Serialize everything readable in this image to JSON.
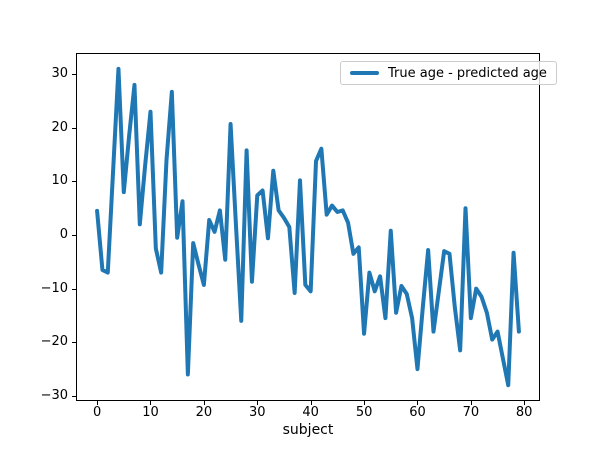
{
  "chart_data": {
    "type": "line",
    "title": "",
    "xlabel": "subject",
    "ylabel": "",
    "grid": false,
    "legend_position": "upper right",
    "line_color": "#1f77b4",
    "line_width": 4,
    "xlim": [
      -3.95,
      82.95
    ],
    "ylim": [
      -30.95,
      33.95
    ],
    "x_ticks": {
      "values": [
        0,
        10,
        20,
        30,
        40,
        50,
        60,
        70,
        80
      ],
      "labels": [
        "0",
        "10",
        "20",
        "30",
        "40",
        "50",
        "60",
        "70",
        "80"
      ]
    },
    "y_ticks": {
      "values": [
        30,
        20,
        10,
        0,
        -10,
        -20,
        -30
      ],
      "labels": [
        "30",
        "20",
        "10",
        "0",
        "−10",
        "−20",
        "−30"
      ]
    },
    "x": [
      0,
      1,
      2,
      3,
      4,
      5,
      6,
      7,
      8,
      9,
      10,
      11,
      12,
      13,
      14,
      15,
      16,
      17,
      18,
      19,
      20,
      21,
      22,
      23,
      24,
      25,
      26,
      27,
      28,
      29,
      30,
      31,
      32,
      33,
      34,
      35,
      36,
      37,
      38,
      39,
      40,
      41,
      42,
      43,
      44,
      45,
      46,
      47,
      48,
      49,
      50,
      51,
      52,
      53,
      54,
      55,
      56,
      57,
      58,
      59,
      60,
      61,
      62,
      63,
      64,
      65,
      66,
      67,
      68,
      69,
      70,
      71,
      72,
      73,
      74,
      75,
      76,
      77,
      78,
      79
    ],
    "series": [
      {
        "name": "True age - predicted age",
        "color": "#1f77b4",
        "values": [
          4.5,
          -6.5,
          -7.0,
          12.0,
          31.0,
          8.0,
          18.5,
          28.0,
          2.0,
          13.0,
          23.0,
          -2.5,
          -7.0,
          14.0,
          26.7,
          -0.5,
          6.3,
          -26.0,
          -1.5,
          -5.5,
          -9.3,
          2.8,
          0.6,
          4.6,
          -4.6,
          20.7,
          2.0,
          -16.0,
          15.8,
          -8.7,
          7.4,
          8.3,
          -0.6,
          12.0,
          4.6,
          3.2,
          1.5,
          -10.8,
          10.2,
          -9.3,
          -10.5,
          13.8,
          16.1,
          3.8,
          5.5,
          4.3,
          4.6,
          2.3,
          -3.5,
          -2.3,
          -18.4,
          -7.0,
          -10.5,
          -7.7,
          -15.5,
          0.8,
          -14.5,
          -9.5,
          -11.0,
          -15.5,
          -25.0,
          -13.5,
          -2.8,
          -18.0,
          -10.5,
          -3.0,
          -3.5,
          -13.5,
          -21.5,
          5.0,
          -15.5,
          -10.0,
          -11.5,
          -14.5,
          -19.5,
          -18.0,
          -23.0,
          -28.0,
          -3.3,
          -18.0
        ]
      }
    ]
  }
}
